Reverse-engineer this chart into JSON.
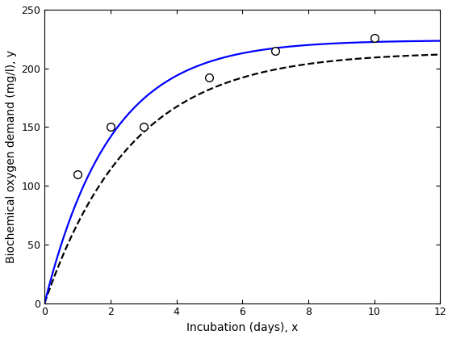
{
  "scatter_x": [
    1,
    2,
    3,
    5,
    7,
    10
  ],
  "scatter_y": [
    110,
    150,
    150,
    192,
    215,
    226
  ],
  "blue_L": 224.0,
  "blue_k": 0.5,
  "dashed_L": 214.0,
  "dashed_k": 0.38,
  "xlim": [
    0,
    12
  ],
  "ylim": [
    0,
    250
  ],
  "xticks": [
    0,
    2,
    4,
    6,
    8,
    10,
    12
  ],
  "yticks": [
    0,
    50,
    100,
    150,
    200,
    250
  ],
  "xlabel": "Incubation (days), x",
  "ylabel": "Biochemical oxygen demand (mg/l), y",
  "blue_color": "#0000FF",
  "dashed_color": "#000000",
  "scatter_color": "#000000",
  "figsize": [
    5.6,
    4.2
  ],
  "dpi": 100
}
